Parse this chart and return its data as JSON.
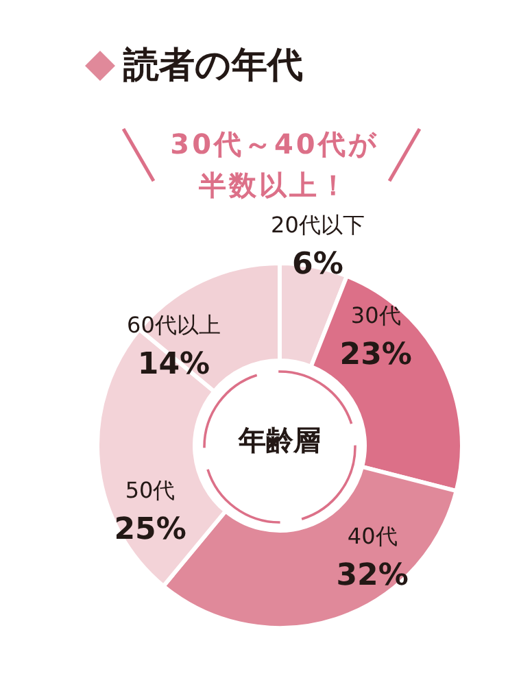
{
  "chart_data": {
    "type": "donut",
    "title": "読者の年代",
    "subtitle": "30代～40代が半数以上！",
    "categories": [
      "20代以下",
      "30代",
      "40代",
      "50代",
      "60代以上"
    ],
    "values": [
      6,
      23,
      32,
      25,
      14
    ],
    "value_labels": [
      "6%",
      "23%",
      "32%",
      "25%",
      "14%"
    ],
    "colors": [
      "#f2d4d9",
      "#dc7088",
      "#e0899a",
      "#f3d3d8",
      "#f2d1d6"
    ],
    "annotations": [
      "年齢層"
    ]
  }
}
